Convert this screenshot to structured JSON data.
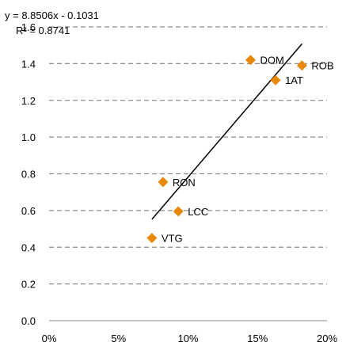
{
  "chart_data": {
    "type": "scatter",
    "title": "",
    "xlabel": "",
    "ylabel": "",
    "xlim": [
      0,
      0.2
    ],
    "ylim": [
      0,
      1.6
    ],
    "x_ticks": [
      0,
      0.05,
      0.1,
      0.15,
      0.2
    ],
    "x_tick_labels": [
      "0%",
      "5%",
      "10%",
      "15%",
      "20%"
    ],
    "y_ticks": [
      0,
      0.2,
      0.4,
      0.6,
      0.8,
      1.0,
      1.2,
      1.4,
      1.6
    ],
    "y_tick_labels": [
      "0.0",
      "0.2",
      "0.4",
      "0.6",
      "0.8",
      "1.0",
      "1.2",
      "1.4",
      "1.6"
    ],
    "grid": "horizontal-dashed",
    "marker_color": "#E8890C",
    "points": [
      {
        "label": "DOM",
        "x": 0.145,
        "y": 1.42
      },
      {
        "label": "ROB",
        "x": 0.182,
        "y": 1.39
      },
      {
        "label": "1AT",
        "x": 0.163,
        "y": 1.31
      },
      {
        "label": "RON",
        "x": 0.082,
        "y": 0.755
      },
      {
        "label": "LCC",
        "x": 0.093,
        "y": 0.595
      },
      {
        "label": "VTG",
        "x": 0.074,
        "y": 0.45
      }
    ],
    "trendline": {
      "slope": 8.8506,
      "intercept": -0.1031,
      "x_range": [
        0.074,
        0.182
      ],
      "equation": "y = 8.8506x - 0.1031",
      "r_squared": "R² = 0.8741"
    }
  }
}
